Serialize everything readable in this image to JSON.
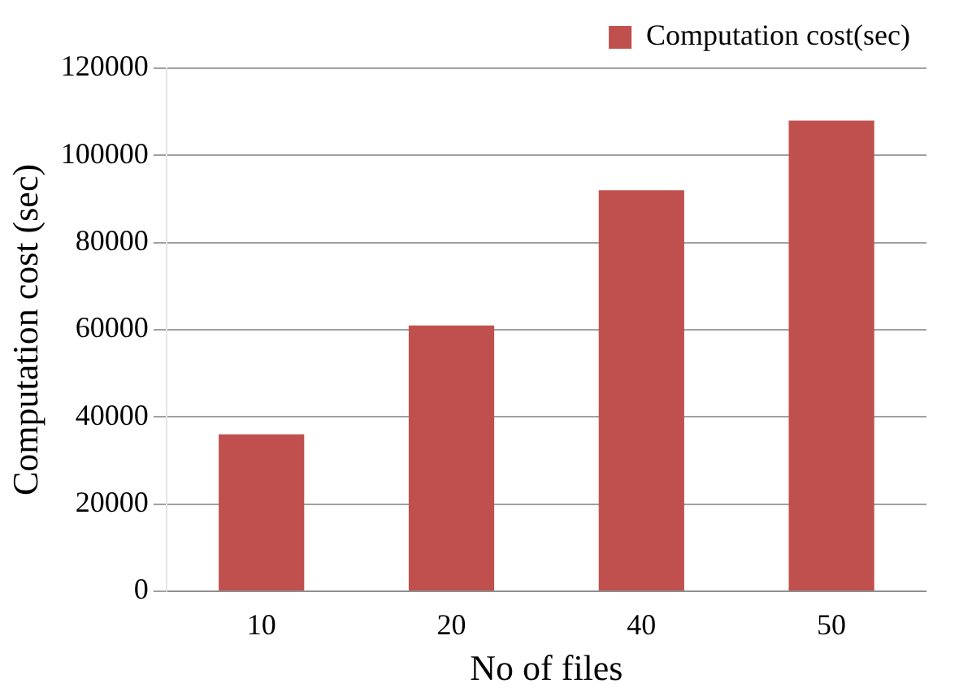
{
  "chart_data": {
    "type": "bar",
    "xlabel": "No of files",
    "ylabel": "Computation cost (sec)",
    "categories": [
      "10",
      "20",
      "40",
      "50"
    ],
    "series": [
      {
        "name": "Computation cost(sec)",
        "color": "#c0504d",
        "values": [
          36000,
          61000,
          92000,
          108000
        ]
      }
    ],
    "ylim": [
      0,
      120000
    ],
    "yticks": [
      0,
      20000,
      40000,
      60000,
      80000,
      100000,
      120000
    ],
    "grid": "y",
    "legend": "top right"
  }
}
